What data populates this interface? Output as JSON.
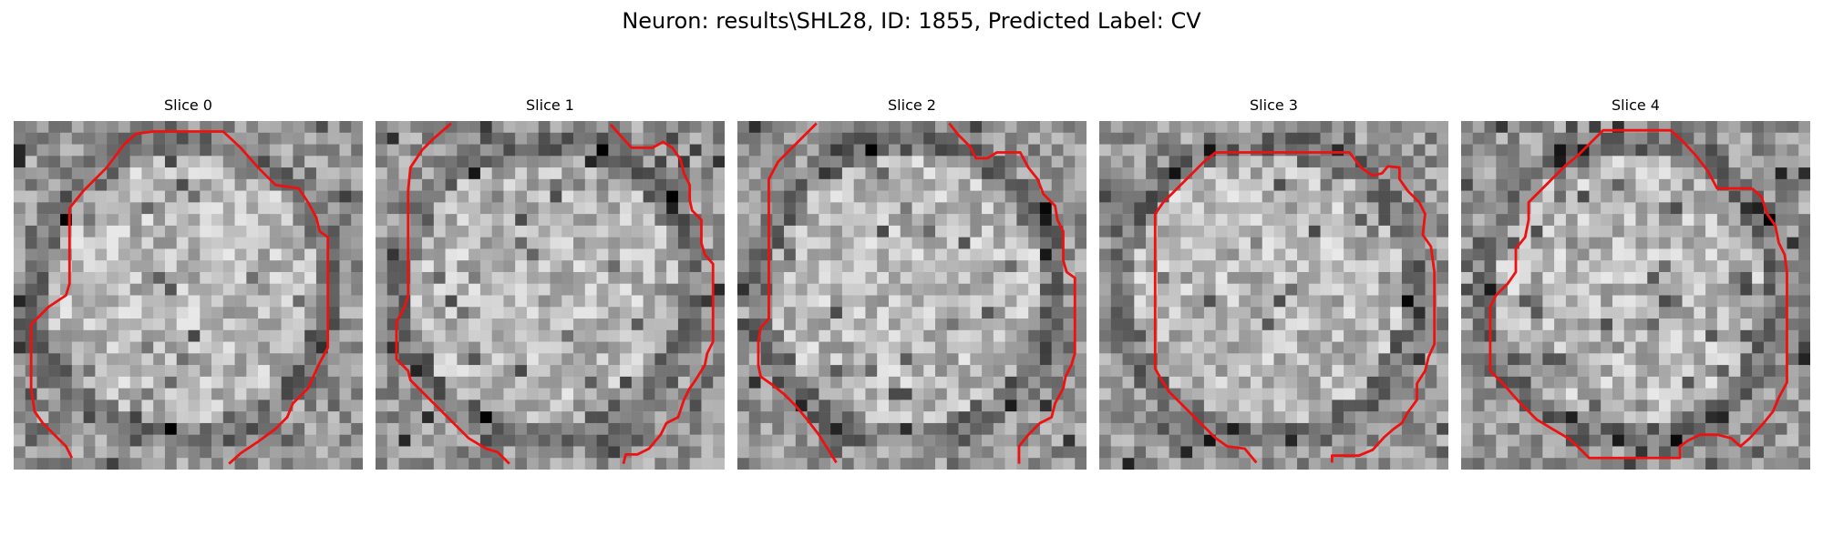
{
  "figure": {
    "title": "Neuron: results\\SHL28, ID: 1855, Predicted Label: CV",
    "colormap": "gray",
    "contour_color": "#ee1111",
    "image_grid": [
      30,
      30
    ]
  },
  "slices": [
    {
      "title": "Slice 0",
      "seed": 11,
      "contours": [
        [
          [
            5,
            29.0
          ],
          [
            4.5,
            28
          ],
          [
            3.5,
            27
          ],
          [
            2.5,
            26
          ],
          [
            1.8,
            25
          ],
          [
            1.5,
            23
          ],
          [
            1.5,
            20
          ],
          [
            1.5,
            17.5
          ],
          [
            3,
            16
          ],
          [
            4.5,
            15
          ],
          [
            4.8,
            14
          ],
          [
            4.8,
            12
          ],
          [
            4.8,
            7.5
          ],
          [
            6,
            6
          ],
          [
            8,
            4
          ],
          [
            9.5,
            2
          ],
          [
            10.5,
            1.1
          ],
          [
            12,
            0.9
          ],
          [
            14,
            0.9
          ],
          [
            18,
            0.9
          ],
          [
            19.5,
            2.3
          ],
          [
            21,
            4
          ],
          [
            22.5,
            5.5
          ],
          [
            24.5,
            5.8
          ],
          [
            25.3,
            7
          ],
          [
            26,
            8.3
          ],
          [
            26.3,
            9.5
          ],
          [
            27,
            10
          ],
          [
            27,
            13
          ],
          [
            27,
            16
          ],
          [
            27,
            19.5
          ],
          [
            26.2,
            21
          ],
          [
            25.3,
            23
          ],
          [
            24,
            24.3
          ],
          [
            23.5,
            25.5
          ],
          [
            22.5,
            26.5
          ],
          [
            21,
            27.6
          ],
          [
            19.5,
            28.6
          ],
          [
            18.5,
            29.5
          ]
        ]
      ]
    },
    {
      "title": "Slice 1",
      "seed": 23,
      "contours": [
        [
          [
            6.5,
            0.2
          ],
          [
            5,
            1.5
          ],
          [
            4,
            2.5
          ],
          [
            3,
            4
          ],
          [
            2.8,
            6
          ],
          [
            2.8,
            9
          ],
          [
            2.8,
            12
          ],
          [
            2.8,
            15
          ],
          [
            2.5,
            16
          ],
          [
            1.8,
            17.3
          ],
          [
            1.8,
            19
          ],
          [
            1.8,
            20.5
          ],
          [
            2.8,
            21.5
          ],
          [
            3,
            22.3
          ],
          [
            4,
            23.3
          ],
          [
            5,
            24.3
          ],
          [
            6,
            25.3
          ],
          [
            7,
            26.3
          ],
          [
            8,
            27.3
          ],
          [
            9.5,
            28.2
          ],
          [
            10.5,
            28.5
          ],
          [
            11.5,
            29.5
          ]
        ],
        [
          [
            20.2,
            0.3
          ],
          [
            21,
            1.2
          ],
          [
            22,
            2.3
          ],
          [
            23.8,
            2.3
          ],
          [
            24.7,
            1.8
          ],
          [
            25.5,
            2.3
          ],
          [
            26.2,
            3.3
          ],
          [
            26.5,
            4.5
          ],
          [
            27,
            5.5
          ],
          [
            27,
            6.8
          ],
          [
            27.2,
            7.7
          ],
          [
            28,
            8.5
          ],
          [
            28,
            10.5
          ],
          [
            28.3,
            11.5
          ],
          [
            29,
            12.3
          ],
          [
            29,
            15
          ],
          [
            29,
            17
          ],
          [
            29,
            19
          ],
          [
            28.5,
            20
          ],
          [
            28.3,
            21
          ],
          [
            27.5,
            22.3
          ],
          [
            27,
            23
          ],
          [
            26.5,
            24
          ],
          [
            26,
            25.5
          ],
          [
            25,
            26
          ],
          [
            24.5,
            27
          ],
          [
            23.5,
            28.2
          ],
          [
            22.5,
            28.7
          ],
          [
            21.5,
            28.7
          ],
          [
            21.3,
            29.5
          ]
        ]
      ]
    },
    {
      "title": "Slice 2",
      "seed": 37,
      "contours": [
        [
          [
            6.8,
            0.2
          ],
          [
            5,
            2
          ],
          [
            3.5,
            3.5
          ],
          [
            2.7,
            5
          ],
          [
            2.7,
            8
          ],
          [
            2.7,
            11
          ],
          [
            2.7,
            14
          ],
          [
            2.7,
            17
          ],
          [
            2,
            17.8
          ],
          [
            1.8,
            19
          ],
          [
            1.8,
            21
          ],
          [
            2,
            22
          ],
          [
            3,
            22.7
          ],
          [
            4,
            23.5
          ],
          [
            5,
            24.5
          ],
          [
            6,
            25.7
          ],
          [
            7,
            27
          ],
          [
            8.5,
            29.4
          ]
        ],
        [
          [
            18.2,
            0.2
          ],
          [
            19,
            1.2
          ],
          [
            20,
            2.2
          ],
          [
            20.5,
            3.2
          ],
          [
            21.5,
            3.2
          ],
          [
            22.3,
            2.7
          ],
          [
            24.3,
            2.7
          ],
          [
            25,
            4
          ],
          [
            25.8,
            5
          ],
          [
            26.3,
            6.3
          ],
          [
            27.3,
            7.3
          ],
          [
            27.5,
            8.5
          ],
          [
            28,
            9.5
          ],
          [
            28,
            12
          ],
          [
            28.3,
            13
          ],
          [
            29,
            13.5
          ],
          [
            29,
            16
          ],
          [
            29,
            18
          ],
          [
            29,
            20
          ],
          [
            28.7,
            21
          ],
          [
            28.2,
            22
          ],
          [
            28,
            23
          ],
          [
            27.3,
            24.3
          ],
          [
            27,
            25.5
          ],
          [
            26,
            26
          ],
          [
            25,
            27
          ],
          [
            24.2,
            28
          ],
          [
            24.2,
            29.5
          ]
        ]
      ]
    },
    {
      "title": "Slice 3",
      "seed": 51,
      "contours": [
        [
          [
            13.5,
            29.4
          ],
          [
            12.5,
            28.2
          ],
          [
            11,
            28
          ],
          [
            10,
            27.3
          ],
          [
            9,
            26.3
          ],
          [
            8,
            25.3
          ],
          [
            7,
            24.3
          ],
          [
            6,
            23.3
          ],
          [
            5.3,
            22.2
          ],
          [
            4.8,
            21.3
          ],
          [
            4.8,
            18
          ],
          [
            4.8,
            15
          ],
          [
            4.8,
            12
          ],
          [
            4.8,
            8
          ],
          [
            5.5,
            7
          ],
          [
            7,
            5.5
          ],
          [
            9,
            3.5
          ],
          [
            10,
            2.7
          ],
          [
            12,
            2.7
          ],
          [
            15,
            2.7
          ],
          [
            18,
            2.7
          ],
          [
            21.5,
            2.7
          ],
          [
            22.5,
            4
          ],
          [
            23.5,
            4.7
          ],
          [
            24.3,
            4.5
          ],
          [
            24.8,
            3.9
          ],
          [
            25.8,
            4
          ],
          [
            25.8,
            5
          ],
          [
            26.5,
            6
          ],
          [
            27.5,
            7
          ],
          [
            28,
            8
          ],
          [
            27.8,
            9.8
          ],
          [
            28.5,
            10.8
          ],
          [
            28.8,
            13
          ],
          [
            28.8,
            16
          ],
          [
            28.8,
            19.2
          ],
          [
            28.3,
            20.3
          ],
          [
            28,
            21.5
          ],
          [
            27.3,
            22.6
          ],
          [
            27.3,
            24
          ],
          [
            26.5,
            25.1
          ],
          [
            26,
            26
          ],
          [
            25.3,
            26.5
          ],
          [
            24.5,
            27.2
          ],
          [
            23.5,
            28.3
          ],
          [
            22.3,
            28.8
          ],
          [
            20,
            28.8
          ],
          [
            20,
            29.4
          ]
        ]
      ]
    },
    {
      "title": "Slice 4",
      "seed": 67,
      "contours": [
        [
          [
            25,
            5.8
          ],
          [
            25.8,
            6.5
          ],
          [
            26.3,
            8
          ],
          [
            27,
            9
          ],
          [
            27.3,
            10.5
          ],
          [
            27.8,
            11.5
          ],
          [
            28,
            13
          ],
          [
            28,
            16
          ],
          [
            28,
            19
          ],
          [
            28,
            22.5
          ],
          [
            27.3,
            23.8
          ],
          [
            26.8,
            25
          ],
          [
            26,
            26
          ],
          [
            24.8,
            27.3
          ],
          [
            24,
            28
          ],
          [
            23.2,
            27.3
          ],
          [
            22,
            27
          ],
          [
            20.5,
            27
          ],
          [
            19.5,
            27.5
          ],
          [
            18.8,
            28
          ],
          [
            18.8,
            29
          ],
          [
            17,
            29
          ],
          [
            14,
            29
          ],
          [
            11,
            29
          ],
          [
            10,
            28
          ],
          [
            9.2,
            27.3
          ],
          [
            8,
            26.6
          ],
          [
            6.5,
            25.7
          ],
          [
            5,
            24.2
          ],
          [
            3.5,
            22.5
          ],
          [
            2.5,
            21.5
          ],
          [
            2.5,
            19
          ],
          [
            2.5,
            16
          ],
          [
            3,
            15
          ],
          [
            4,
            14
          ],
          [
            4.7,
            13
          ],
          [
            4.7,
            11
          ],
          [
            5.5,
            10
          ],
          [
            5.8,
            8.5
          ],
          [
            5.8,
            7
          ],
          [
            6.8,
            6
          ],
          [
            8,
            4.8
          ],
          [
            9,
            3.8
          ],
          [
            10,
            3
          ],
          [
            11,
            2
          ],
          [
            12.2,
            0.8
          ],
          [
            14,
            0.8
          ],
          [
            16,
            0.8
          ],
          [
            18,
            0.8
          ],
          [
            19,
            1.7
          ],
          [
            20.2,
            3
          ],
          [
            21.2,
            4.3
          ],
          [
            22,
            5.8
          ],
          [
            23.5,
            5.8
          ],
          [
            25,
            5.8
          ]
        ]
      ]
    }
  ]
}
